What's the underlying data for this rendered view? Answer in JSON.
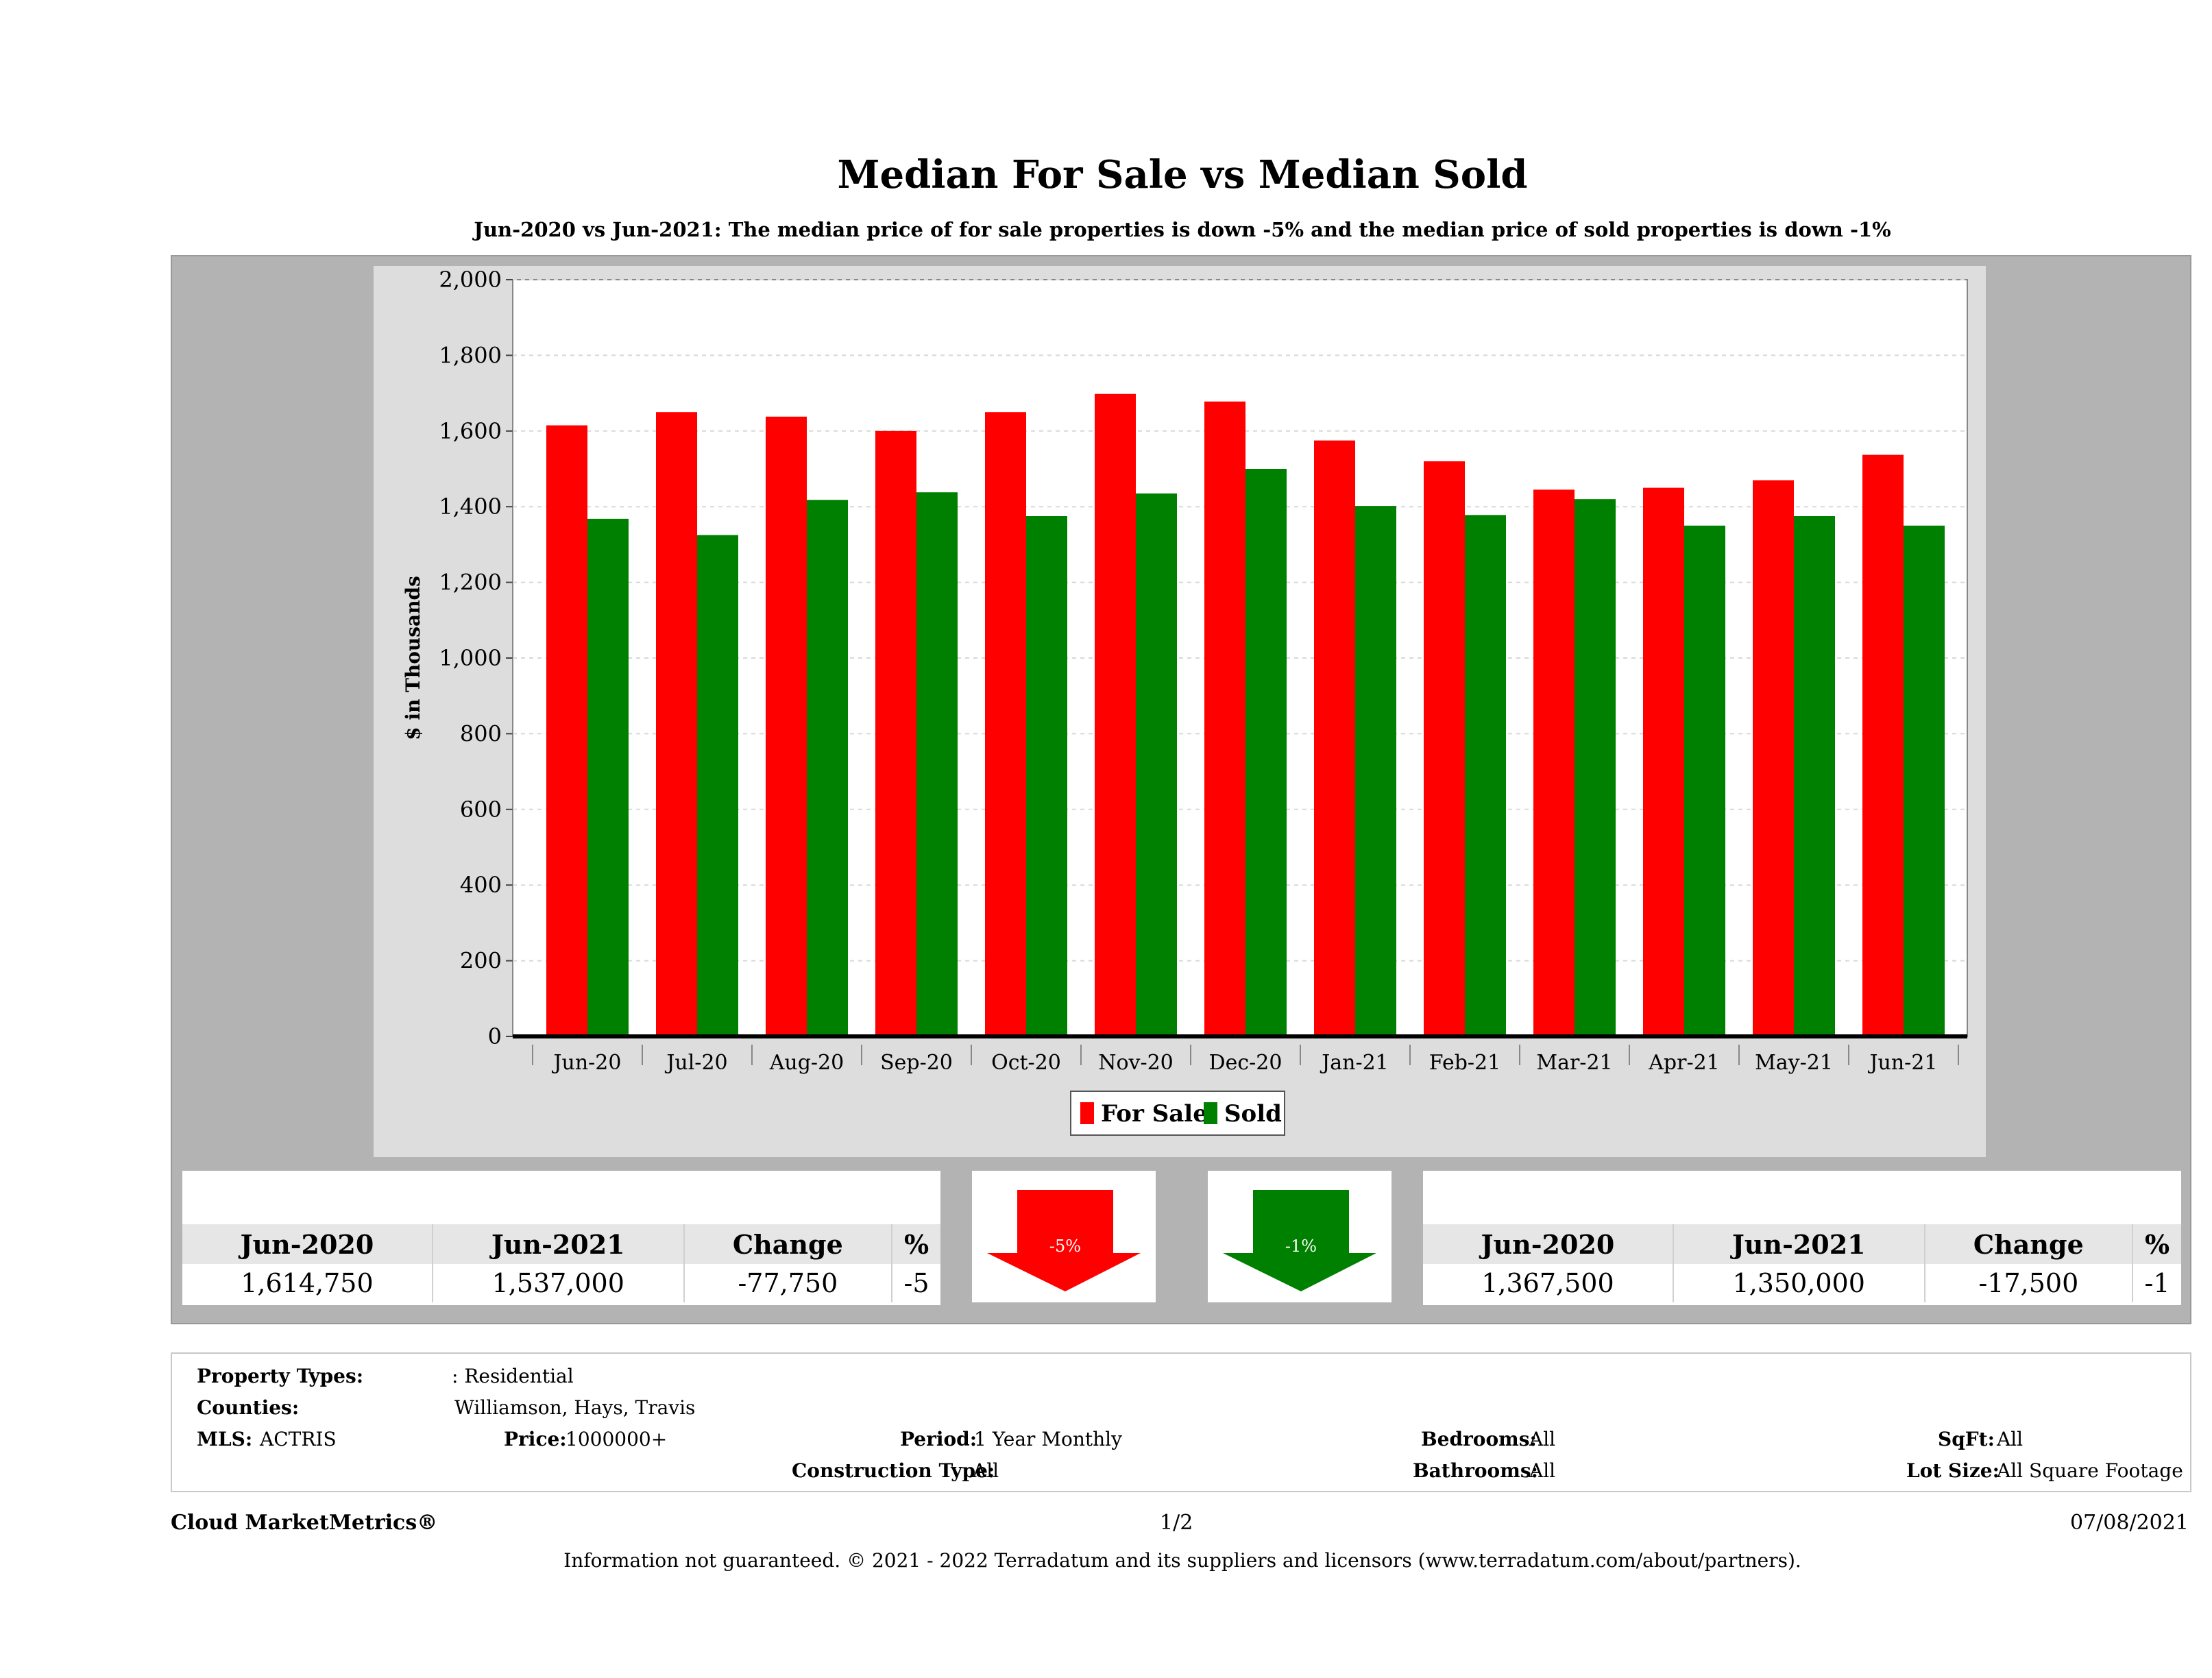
{
  "title": "Median For Sale vs Median Sold",
  "subtitle": "Jun-2020 vs Jun-2021: The median price of for sale properties is down -5% and the median price of sold properties is down -1%",
  "chart_data": {
    "type": "bar",
    "ylabel": "$ in Thousands",
    "ylim": [
      0,
      2000
    ],
    "yticks": [
      "0",
      "200",
      "400",
      "600",
      "800",
      "1,000",
      "1,200",
      "1,400",
      "1,600",
      "1,800",
      "2,000"
    ],
    "categories": [
      "Jun-20",
      "Jul-20",
      "Aug-20",
      "Sep-20",
      "Oct-20",
      "Nov-20",
      "Dec-20",
      "Jan-21",
      "Feb-21",
      "Mar-21",
      "Apr-21",
      "May-21",
      "Jun-21"
    ],
    "series": [
      {
        "name": "For Sale",
        "color": "#ff0000",
        "values": [
          1615,
          1650,
          1638,
          1600,
          1650,
          1698,
          1678,
          1575,
          1520,
          1445,
          1450,
          1470,
          1537
        ]
      },
      {
        "name": "Sold",
        "color": "#008000",
        "values": [
          1368,
          1325,
          1418,
          1438,
          1375,
          1435,
          1500,
          1402,
          1378,
          1420,
          1350,
          1375,
          1350
        ]
      }
    ],
    "legend": "bottom-center",
    "grid": true
  },
  "left_table": {
    "headers": [
      "Jun-2020",
      "Jun-2021",
      "Change",
      "%"
    ],
    "values": [
      "1,614,750",
      "1,537,000",
      "-77,750",
      "-5"
    ]
  },
  "right_table": {
    "headers": [
      "Jun-2020",
      "Jun-2021",
      "Change",
      "%"
    ],
    "values": [
      "1,367,500",
      "1,350,000",
      "-17,500",
      "-1"
    ]
  },
  "arrows": {
    "for_sale": {
      "label": "-5%",
      "color": "#ff0000"
    },
    "sold": {
      "label": "-1%",
      "color": "#008000"
    }
  },
  "info": {
    "property_types_label": "Property Types:",
    "property_types_value": ": Residential",
    "counties_label": "Counties:",
    "counties_value": "Williamson, Hays, Travis",
    "mls_label": "MLS:",
    "mls_value": "ACTRIS",
    "price_label": "Price:",
    "price_value": "1000000+",
    "period_label": "Period:",
    "period_value": "1 Year Monthly",
    "construction_label": "Construction Type:",
    "construction_value": "All",
    "bedrooms_label": "Bedrooms:",
    "bedrooms_value": "All",
    "bathrooms_label": "Bathrooms:",
    "bathrooms_value": "All",
    "sqft_label": "SqFt:",
    "sqft_value": "All",
    "lotsize_label": "Lot Size:",
    "lotsize_value": "All Square Footage"
  },
  "footer": {
    "brand": "Cloud MarketMetrics®",
    "page": "1/2",
    "date": "07/08/2021",
    "disclaimer": "Information not guaranteed. © 2021 - 2022 Terradatum and its suppliers and licensors (www.terradatum.com/about/partners)."
  }
}
